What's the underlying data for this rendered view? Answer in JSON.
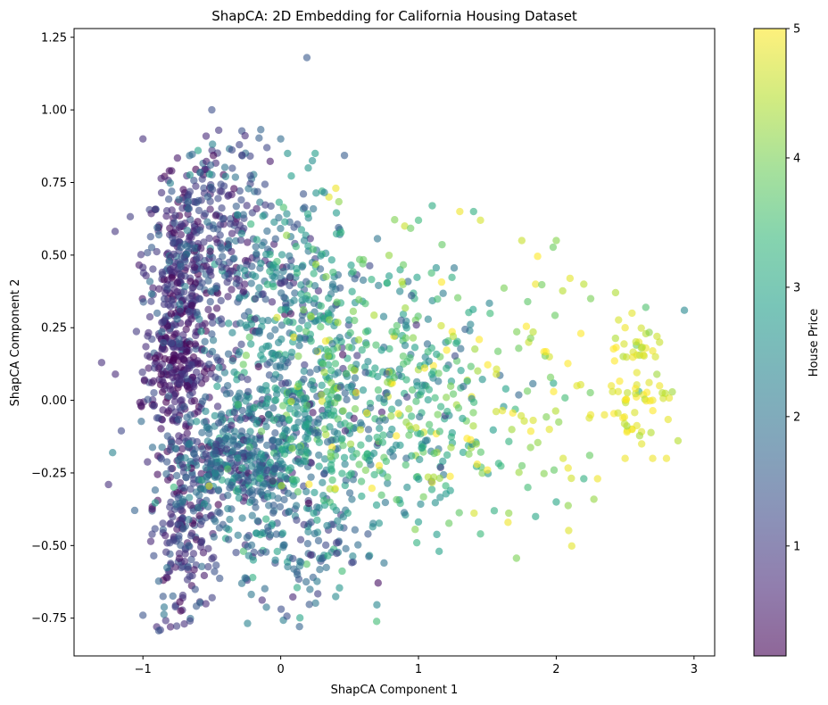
{
  "chart_data": {
    "type": "scatter",
    "title": "ShapCA: 2D Embedding for California Housing Dataset",
    "xlabel": "ShapCA Component 1",
    "ylabel": "ShapCA Component 2",
    "xlim": [
      -1.5,
      3.15
    ],
    "ylim": [
      -0.88,
      1.28
    ],
    "xticks": [
      -1,
      0,
      1,
      2,
      3
    ],
    "xtick_labels": [
      "−1",
      "0",
      "1",
      "2",
      "3"
    ],
    "yticks": [
      -0.75,
      -0.5,
      -0.25,
      0.0,
      0.25,
      0.5,
      0.75,
      1.0,
      1.25
    ],
    "ytick_labels": [
      "−0.75",
      "−0.50",
      "−0.25",
      "0.00",
      "0.25",
      "0.50",
      "0.75",
      "1.00",
      "1.25"
    ],
    "grid": false,
    "legend": "none",
    "marker_alpha": 0.6,
    "colormap": "viridis",
    "colorbar": {
      "label": "House Price",
      "range": [
        0.15,
        5.0
      ],
      "ticks": [
        1,
        2,
        3,
        4,
        5
      ],
      "tick_labels": [
        "1",
        "2",
        "3",
        "4",
        "5"
      ]
    },
    "points_summary": "approx. 2500 points; x,y = ShapCA components; color = House Price",
    "points": [
      [
        0.19,
        1.18,
        1.5
      ],
      [
        -0.5,
        1.0,
        1.3
      ],
      [
        -1.0,
        0.9,
        0.8
      ],
      [
        -0.45,
        0.93,
        0.9
      ],
      [
        0.0,
        0.9,
        1.8
      ],
      [
        0.05,
        0.85,
        2.6
      ],
      [
        0.25,
        0.85,
        2.8
      ],
      [
        -0.1,
        0.87,
        1.2
      ],
      [
        -0.6,
        0.86,
        2.9
      ],
      [
        -0.3,
        0.88,
        1.1
      ],
      [
        0.2,
        0.8,
        2.7
      ],
      [
        0.3,
        0.72,
        3.2
      ],
      [
        0.35,
        0.7,
        4.8
      ],
      [
        0.4,
        0.73,
        4.9
      ],
      [
        1.1,
        0.67,
        3.1
      ],
      [
        1.3,
        0.65,
        4.9
      ],
      [
        1.4,
        0.65,
        3.2
      ],
      [
        1.45,
        0.62,
        4.7
      ],
      [
        1.0,
        0.62,
        3.4
      ],
      [
        0.9,
        0.6,
        4.6
      ],
      [
        1.75,
        0.55,
        4.6
      ],
      [
        2.0,
        0.55,
        4.1
      ],
      [
        1.85,
        0.4,
        4.9
      ],
      [
        2.1,
        0.42,
        4.8
      ],
      [
        2.2,
        0.4,
        4.5
      ],
      [
        2.25,
        0.35,
        4.0
      ],
      [
        2.55,
        0.3,
        4.8
      ],
      [
        2.65,
        0.32,
        3.6
      ],
      [
        2.93,
        0.31,
        2.4
      ],
      [
        2.5,
        0.25,
        4.9
      ],
      [
        2.6,
        0.2,
        4.9
      ],
      [
        2.65,
        0.18,
        4.9
      ],
      [
        2.7,
        0.17,
        4.9
      ],
      [
        2.75,
        0.2,
        4.6
      ],
      [
        2.72,
        0.15,
        4.7
      ],
      [
        2.4,
        0.05,
        4.9
      ],
      [
        2.45,
        0.03,
        4.8
      ],
      [
        2.5,
        0.0,
        4.9
      ],
      [
        2.6,
        0.03,
        3.1
      ],
      [
        2.7,
        0.0,
        4.9
      ],
      [
        2.75,
        0.05,
        4.9
      ],
      [
        2.55,
        -0.1,
        4.9
      ],
      [
        2.62,
        -0.15,
        4.8
      ],
      [
        2.7,
        -0.2,
        4.9
      ],
      [
        2.8,
        -0.2,
        4.9
      ],
      [
        2.5,
        -0.2,
        4.9
      ],
      [
        2.3,
        -0.27,
        4.9
      ],
      [
        2.2,
        -0.27,
        3.2
      ],
      [
        2.05,
        -0.2,
        4.7
      ],
      [
        1.95,
        -0.1,
        4.8
      ],
      [
        2.0,
        -0.35,
        3.0
      ],
      [
        1.85,
        -0.4,
        3.0
      ],
      [
        1.65,
        -0.42,
        4.9
      ],
      [
        1.55,
        -0.38,
        3.2
      ],
      [
        1.45,
        -0.46,
        3.4
      ],
      [
        1.15,
        -0.52,
        2.9
      ],
      [
        0.75,
        -0.56,
        2.0
      ],
      [
        -1.0,
        -0.74,
        1.4
      ],
      [
        -0.9,
        -0.78,
        0.7
      ],
      [
        -0.8,
        -0.78,
        0.6
      ],
      [
        -0.7,
        -0.77,
        0.8
      ],
      [
        -1.25,
        -0.29,
        0.8
      ],
      [
        -1.22,
        -0.18,
        2.3
      ],
      [
        -1.3,
        0.13,
        0.8
      ],
      [
        -1.2,
        0.09,
        0.7
      ],
      [
        2.35,
        -0.05,
        4.9
      ],
      [
        2.25,
        -0.05,
        4.9
      ],
      [
        2.15,
        0.05,
        4.8
      ],
      [
        1.95,
        0.15,
        4.7
      ],
      [
        1.8,
        0.2,
        4.6
      ]
    ]
  }
}
